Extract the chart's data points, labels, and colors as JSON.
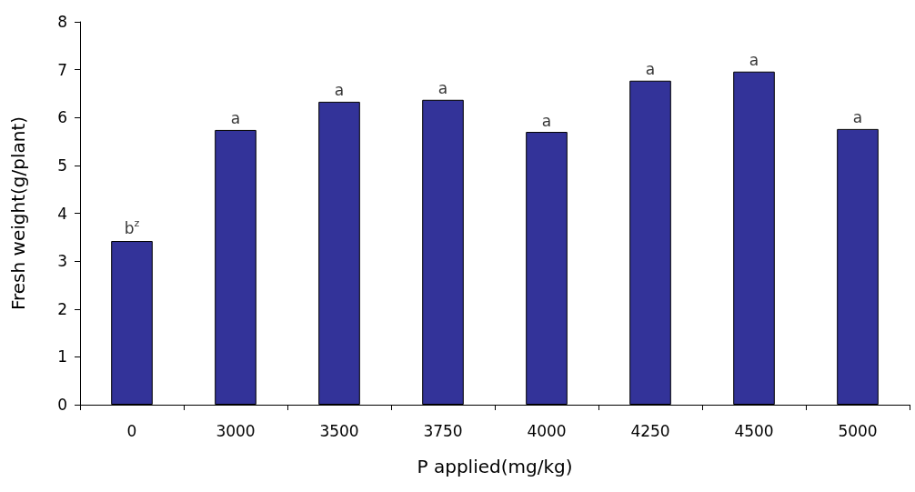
{
  "chart_data": {
    "type": "bar",
    "xlabel": "P applied(mg/kg)",
    "ylabel": "Fresh weight(g/plant)",
    "categories": [
      "0",
      "3000",
      "3500",
      "3750",
      "4000",
      "4250",
      "4500",
      "5000"
    ],
    "values": [
      3.42,
      5.74,
      6.33,
      6.37,
      5.7,
      6.77,
      6.96,
      5.76
    ],
    "color": "#333399",
    "ylim": [
      0,
      8
    ],
    "yticks": [
      0,
      1,
      2,
      3,
      4,
      5,
      6,
      7,
      8
    ],
    "grid": false,
    "annotations": [
      {
        "text": "b$^{z}$",
        "x": "0",
        "y": 3.42
      },
      {
        "text": "a",
        "x": "3000",
        "y": 5.74
      },
      {
        "text": "a",
        "x": "3500",
        "y": 6.33
      },
      {
        "text": "a",
        "x": "3750",
        "y": 6.37
      },
      {
        "text": "a",
        "x": "4000",
        "y": 5.7
      },
      {
        "text": "a",
        "x": "4250",
        "y": 6.77
      },
      {
        "text": "a",
        "x": "4500",
        "y": 6.96
      },
      {
        "text": "a",
        "x": "5000",
        "y": 5.76
      }
    ]
  }
}
